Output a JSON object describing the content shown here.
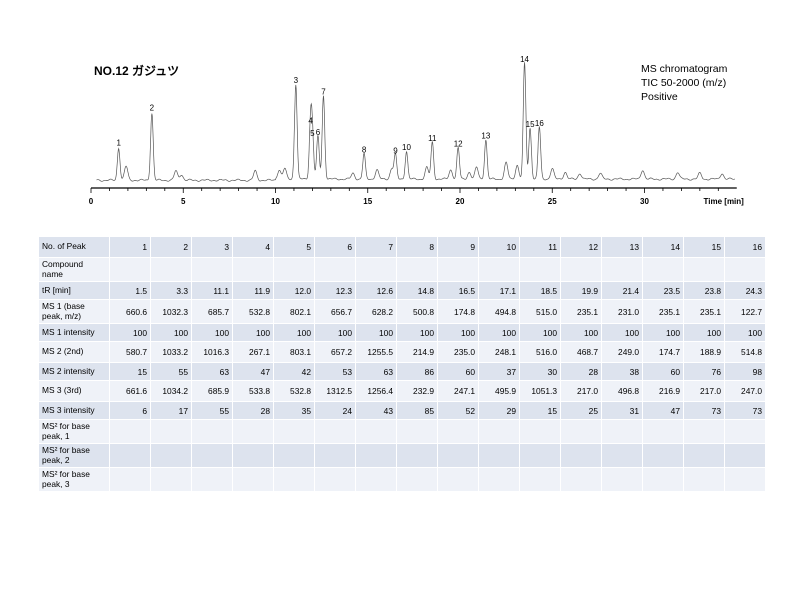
{
  "title": "NO.12 ガジュツ",
  "info": [
    "MS chromatogram",
    "TIC 50-2000 (m/z)",
    "Positive"
  ],
  "chart_data": {
    "type": "line",
    "title": "NO.12 ガジュツ",
    "xlabel": "Time [min]",
    "ylabel": "",
    "xlim": [
      0,
      35
    ],
    "x_ticks": [
      0,
      5,
      10,
      15,
      20,
      25,
      30
    ],
    "x_tick_labels": [
      "0",
      "5",
      "10",
      "15",
      "20",
      "25",
      "30"
    ],
    "peaks": [
      {
        "label": "1",
        "x": 1.5,
        "height": 0.28
      },
      {
        "label": "2",
        "x": 3.3,
        "height": 0.58
      },
      {
        "label": "3",
        "x": 11.1,
        "height": 0.82
      },
      {
        "label": "4",
        "x": 11.9,
        "height": 0.47
      },
      {
        "label": "5",
        "x": 12.0,
        "height": 0.36
      },
      {
        "label": "6",
        "x": 12.3,
        "height": 0.37
      },
      {
        "label": "7",
        "x": 12.6,
        "height": 0.72
      },
      {
        "label": "8",
        "x": 14.8,
        "height": 0.22
      },
      {
        "label": "9",
        "x": 16.5,
        "height": 0.21
      },
      {
        "label": "10",
        "x": 17.1,
        "height": 0.24
      },
      {
        "label": "11",
        "x": 18.5,
        "height": 0.32
      },
      {
        "label": "12",
        "x": 19.9,
        "height": 0.27
      },
      {
        "label": "13",
        "x": 21.4,
        "height": 0.34
      },
      {
        "label": "14",
        "x": 23.5,
        "height": 1.0
      },
      {
        "label": "15",
        "x": 23.8,
        "height": 0.44
      },
      {
        "label": "16",
        "x": 24.3,
        "height": 0.45
      }
    ],
    "minor_peaks": [
      {
        "x": 1.9,
        "height": 0.12
      },
      {
        "x": 4.6,
        "height": 0.08
      },
      {
        "x": 4.9,
        "height": 0.05
      },
      {
        "x": 8.9,
        "height": 0.08
      },
      {
        "x": 10.2,
        "height": 0.08
      },
      {
        "x": 10.5,
        "height": 0.09
      },
      {
        "x": 14.2,
        "height": 0.05
      },
      {
        "x": 15.5,
        "height": 0.08
      },
      {
        "x": 16.3,
        "height": 0.09
      },
      {
        "x": 18.2,
        "height": 0.1
      },
      {
        "x": 19.5,
        "height": 0.08
      },
      {
        "x": 20.5,
        "height": 0.06
      },
      {
        "x": 20.9,
        "height": 0.1
      },
      {
        "x": 22.5,
        "height": 0.14
      },
      {
        "x": 23.1,
        "height": 0.12
      },
      {
        "x": 25.0,
        "height": 0.09
      },
      {
        "x": 25.7,
        "height": 0.06
      },
      {
        "x": 26.5,
        "height": 0.05
      },
      {
        "x": 27.6,
        "height": 0.05
      },
      {
        "x": 29.9,
        "height": 0.08
      },
      {
        "x": 31.8,
        "height": 0.06
      },
      {
        "x": 33.0,
        "height": 0.05
      },
      {
        "x": 34.2,
        "height": 0.05
      }
    ]
  },
  "table": {
    "rows": [
      {
        "label": "No. of Peak",
        "cls": "hdr",
        "values": [
          "1",
          "2",
          "3",
          "4",
          "5",
          "6",
          "7",
          "8",
          "9",
          "10",
          "11",
          "12",
          "13",
          "14",
          "15",
          "16"
        ]
      },
      {
        "label": "Compound name",
        "cls": "tall2",
        "values": [
          "",
          "",
          "",
          "",
          "",
          "",
          "",
          "",
          "",
          "",
          "",
          "",
          "",
          "",
          "",
          ""
        ]
      },
      {
        "label": "tR [min]",
        "cls": "",
        "values": [
          "1.5",
          "3.3",
          "11.1",
          "11.9",
          "12.0",
          "12.3",
          "12.6",
          "14.8",
          "16.5",
          "17.1",
          "18.5",
          "19.9",
          "21.4",
          "23.5",
          "23.8",
          "24.3"
        ]
      },
      {
        "label": "MS 1 (base peak, m/z)",
        "cls": "tall2",
        "values": [
          "660.6",
          "1032.3",
          "685.7",
          "532.8",
          "802.1",
          "656.7",
          "628.2",
          "500.8",
          "174.8",
          "494.8",
          "515.0",
          "235.1",
          "231.0",
          "235.1",
          "235.1",
          "122.7"
        ]
      },
      {
        "label": "MS 1 intensity",
        "cls": "",
        "values": [
          "100",
          "100",
          "100",
          "100",
          "100",
          "100",
          "100",
          "100",
          "100",
          "100",
          "100",
          "100",
          "100",
          "100",
          "100",
          "100"
        ]
      },
      {
        "label": "MS 2 (2nd)",
        "cls": "tall",
        "values": [
          "580.7",
          "1033.2",
          "1016.3",
          "267.1",
          "803.1",
          "657.2",
          "1255.5",
          "214.9",
          "235.0",
          "248.1",
          "516.0",
          "468.7",
          "249.0",
          "174.7",
          "188.9",
          "514.8"
        ]
      },
      {
        "label": "MS 2 intensity",
        "cls": "",
        "values": [
          "15",
          "55",
          "63",
          "47",
          "42",
          "53",
          "63",
          "86",
          "60",
          "37",
          "30",
          "28",
          "38",
          "60",
          "76",
          "98"
        ]
      },
      {
        "label": "MS 3 (3rd)",
        "cls": "tall",
        "values": [
          "661.6",
          "1034.2",
          "685.9",
          "533.8",
          "532.8",
          "1312.5",
          "1256.4",
          "232.9",
          "247.1",
          "495.9",
          "1051.3",
          "217.0",
          "496.8",
          "216.9",
          "217.0",
          "247.0"
        ]
      },
      {
        "label": "MS 3 intensity",
        "cls": "",
        "values": [
          "6",
          "17",
          "55",
          "28",
          "35",
          "24",
          "43",
          "85",
          "52",
          "29",
          "15",
          "25",
          "31",
          "47",
          "73",
          "73"
        ]
      },
      {
        "label": "MS² for base peak, 1",
        "cls": "tall2",
        "values": [
          "",
          "",
          "",
          "",
          "",
          "",
          "",
          "",
          "",
          "",
          "",
          "",
          "",
          "",
          "",
          ""
        ]
      },
      {
        "label": "MS² for base peak, 2",
        "cls": "tall2",
        "values": [
          "",
          "",
          "",
          "",
          "",
          "",
          "",
          "",
          "",
          "",
          "",
          "",
          "",
          "",
          "",
          ""
        ]
      },
      {
        "label": "MS² for base peak, 3",
        "cls": "tall2",
        "values": [
          "",
          "",
          "",
          "",
          "",
          "",
          "",
          "",
          "",
          "",
          "",
          "",
          "",
          "",
          "",
          ""
        ]
      }
    ]
  }
}
